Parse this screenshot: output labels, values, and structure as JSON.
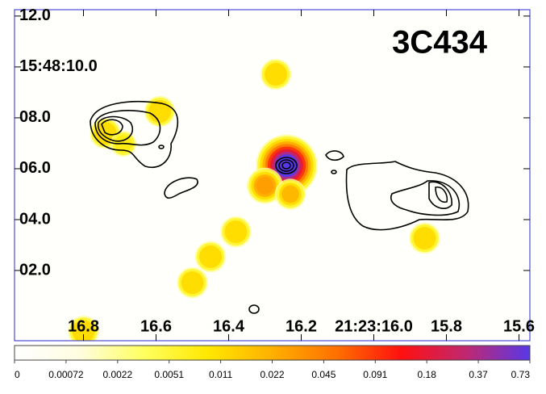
{
  "chart_data": {
    "type": "image",
    "title": "3C434",
    "xlim": [
      16.99,
      15.57
    ],
    "xticks": [
      16.8,
      16.6,
      16.4,
      16.2,
      {
        "value": 16.0,
        "label": "21:23:16.0"
      },
      15.8,
      15.6
    ],
    "ylim": [
      -0.76,
      12.25
    ],
    "yticks": [
      {
        "value": 12,
        "label": "12.0"
      },
      {
        "value": 10,
        "label": "15:48:10.0"
      },
      {
        "value": 8,
        "label": "08.0"
      },
      {
        "value": 6,
        "label": "06.0"
      },
      {
        "value": 4,
        "label": "04.0"
      },
      {
        "value": 2,
        "label": "02.0"
      }
    ],
    "sources": [
      {
        "x": 16.27,
        "y": 9.71,
        "value": 0.011
      },
      {
        "x": 16.59,
        "y": 8.25,
        "value": 0.011
      },
      {
        "x": 16.74,
        "y": 7.39,
        "value": 0.011
      },
      {
        "x": 16.69,
        "y": 6.98,
        "value": 0.008
      },
      {
        "x": 16.24,
        "y": 6.12,
        "value": 0.73
      },
      {
        "x": 16.3,
        "y": 5.33,
        "value": 0.03
      },
      {
        "x": 16.23,
        "y": 5.0,
        "value": 0.02
      },
      {
        "x": 16.38,
        "y": 3.52,
        "value": 0.011
      },
      {
        "x": 16.45,
        "y": 2.54,
        "value": 0.011
      },
      {
        "x": 16.5,
        "y": 1.52,
        "value": 0.011
      },
      {
        "x": 15.86,
        "y": 3.27,
        "value": 0.011
      },
      {
        "x": 16.8,
        "y": -0.39,
        "value": 0.011
      }
    ],
    "colorbar": {
      "ticks": [
        0,
        0.00072,
        0.0022,
        0.0051,
        0.011,
        0.022,
        0.045,
        0.091,
        0.18,
        0.37,
        0.73
      ],
      "colors": [
        "#ffffff",
        "#fffde0",
        "#ffff60",
        "#ffe800",
        "#ffb000",
        "#ff7000",
        "#ff1010",
        "#c02870",
        "#5838e8"
      ]
    }
  }
}
